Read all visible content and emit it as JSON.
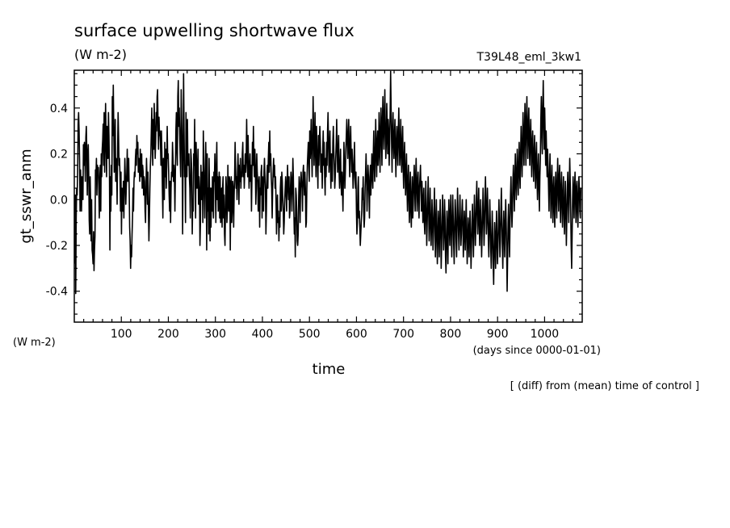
{
  "chart_data": {
    "type": "line",
    "title": "surface upwelling shortwave flux",
    "units": "(W m-2)",
    "run_label": "T39L48_eml_3kw1",
    "ylabel": "gt_sswr_anm",
    "y_units_note": "(W m-2)",
    "xlabel": "time",
    "x_units": "(days since 0000-01-01)",
    "footnote": "[ (diff) from (mean) time of control ]",
    "xlim": [
      0,
      1080
    ],
    "ylim": [
      -0.535,
      0.565
    ],
    "xticks_major": [
      100,
      200,
      300,
      400,
      500,
      600,
      700,
      800,
      900,
      1000
    ],
    "xticks_minor_step": 20,
    "yticks_major": [
      -0.4,
      -0.2,
      0.0,
      0.2,
      0.4
    ],
    "yticks_minor_step": 0.05,
    "grid": false,
    "legend": "none",
    "series": [
      {
        "color": "#000000",
        "x_start": 1,
        "x_step": 1,
        "values": [
          -0.28,
          0.02,
          -0.41,
          -0.08,
          0.05,
          0.02,
          0.12,
          0.33,
          0.38,
          0.3,
          0.17,
          -0.05,
          0.13,
          0.06,
          -0.05,
          0.1,
          0.03,
          0.0,
          0.24,
          0.15,
          0.25,
          0.18,
          0.08,
          0.27,
          0.32,
          0.21,
          0.02,
          0.18,
          0.24,
          0.12,
          -0.09,
          -0.15,
          0.1,
          -0.02,
          -0.18,
          0.0,
          -0.22,
          -0.24,
          -0.28,
          -0.14,
          -0.31,
          -0.22,
          -0.16,
          0.13,
          0.1,
          0.18,
          0.02,
          0.15,
          0.12,
          0.14,
          0.04,
          -0.08,
          0.09,
          0.15,
          -0.05,
          0.2,
          0.1,
          0.22,
          0.26,
          0.33,
          0.15,
          0.38,
          0.12,
          0.25,
          0.42,
          0.28,
          0.1,
          0.32,
          0.3,
          0.18,
          0.38,
          0.28,
          0.14,
          -0.22,
          0.1,
          -0.05,
          0.15,
          0.02,
          0.45,
          0.28,
          0.5,
          0.32,
          0.12,
          0.2,
          0.35,
          0.08,
          0.18,
          0.15,
          -0.02,
          0.22,
          0.38,
          0.28,
          0.15,
          0.18,
          0.1,
          -0.05,
          0.12,
          -0.15,
          0.05,
          0.02,
          -0.05,
          0.08,
          -0.08,
          0.05,
          0.18,
          0.1,
          -0.02,
          0.05,
          0.12,
          0.22,
          0.08,
          0.15,
          0.18,
          0.05,
          -0.12,
          -0.18,
          -0.3,
          -0.2,
          -0.25,
          -0.15,
          -0.08,
          0.05,
          -0.05,
          0.08,
          0.12,
          0.1,
          0.18,
          0.22,
          0.15,
          0.28,
          0.2,
          0.25,
          0.12,
          0.18,
          0.15,
          0.08,
          0.22,
          0.12,
          0.1,
          0.2,
          0.05,
          0.15,
          0.12,
          0.02,
          0.1,
          0.08,
          -0.05,
          -0.1,
          0.05,
          0.18,
          0.1,
          -0.02,
          0.12,
          -0.05,
          -0.18,
          -0.08,
          0.05,
          0.15,
          0.2,
          0.3,
          0.4,
          0.25,
          0.15,
          0.35,
          0.22,
          0.42,
          0.3,
          0.18,
          0.25,
          0.38,
          0.3,
          0.45,
          0.48,
          0.32,
          0.22,
          0.36,
          0.28,
          0.3,
          0.25,
          0.15,
          0.3,
          0.2,
          0.05,
          -0.08,
          0.18,
          0.12,
          0.0,
          0.25,
          0.1,
          0.22,
          0.05,
          0.15,
          0.32,
          0.18,
          0.2,
          0.12,
          0.02,
          -0.05,
          0.08,
          -0.1,
          0.05,
          0.12,
          0.1,
          0.25,
          0.18,
          0.08,
          0.15,
          0.1,
          -0.05,
          0.12,
          0.3,
          0.38,
          0.22,
          0.15,
          0.45,
          0.52,
          0.32,
          0.4,
          0.28,
          0.18,
          0.1,
          0.48,
          0.35,
          0.22,
          -0.15,
          0.2,
          0.55,
          0.3,
          0.1,
          0.15,
          -0.1,
          0.38,
          0.2,
          0.1,
          0.35,
          0.15,
          0.15,
          0.2,
          0.1,
          0.05,
          -0.08,
          0.22,
          0.18,
          0.12,
          -0.15,
          0.0,
          -0.05,
          0.2,
          0.15,
          0.35,
          0.05,
          -0.08,
          0.25,
          0.15,
          0.05,
          0.12,
          0.22,
          -0.02,
          0.1,
          0.05,
          -0.2,
          -0.1,
          0.15,
          0.05,
          0.0,
          0.12,
          -0.1,
          0.3,
          0.15,
          0.02,
          -0.08,
          0.12,
          0.25,
          0.1,
          -0.22,
          0.2,
          -0.05,
          0.05,
          -0.15,
          0.18,
          0.02,
          -0.18,
          0.05,
          -0.12,
          0.05,
          -0.05,
          0.1,
          -0.02,
          -0.08,
          0.12,
          0.08,
          0.2,
          0.05,
          -0.1,
          0.15,
          0.25,
          0.0,
          0.1,
          -0.05,
          0.05,
          0.12,
          -0.08,
          0.1,
          -0.1,
          -0.05,
          0.05,
          -0.12,
          0.05,
          0.1,
          -0.08,
          0.02,
          -0.15,
          -0.2,
          -0.05,
          0.1,
          0.05,
          -0.1,
          -0.05,
          0.15,
          0.0,
          -0.05,
          0.1,
          0.08,
          -0.22,
          0.05,
          0.1,
          -0.1,
          -0.05,
          0.08,
          0.05,
          -0.12,
          0.02,
          0.1,
          0.25,
          0.15,
          0.05,
          0.1,
          0.0,
          0.12,
          0.2,
          0.1,
          -0.02,
          0.15,
          0.08,
          0.18,
          0.05,
          0.12,
          0.1,
          0.2,
          0.25,
          0.1,
          0.15,
          0.05,
          0.12,
          0.2,
          0.12,
          0.18,
          0.35,
          0.2,
          0.1,
          0.28,
          0.15,
          0.05,
          0.12,
          0.2,
          0.08,
          0.15,
          -0.05,
          0.1,
          0.25,
          0.15,
          0.32,
          0.18,
          0.1,
          0.22,
          0.15,
          -0.02,
          0.05,
          0.2,
          0.12,
          0.08,
          -0.05,
          0.05,
          0.1,
          -0.12,
          0.05,
          0.02,
          0.12,
          0.15,
          -0.08,
          0.1,
          0.05,
          -0.05,
          0.12,
          0.18,
          0.1,
          0.05,
          -0.15,
          -0.05,
          0.1,
          0.15,
          0.05,
          0.18,
          0.25,
          0.12,
          0.3,
          0.15,
          0.2,
          0.1,
          0.05,
          -0.08,
          0.05,
          0.12,
          0.18,
          0.1,
          0.15,
          0.05,
          0.1,
          0.0,
          -0.15,
          -0.05,
          0.02,
          -0.1,
          -0.05,
          -0.18,
          -0.08,
          -0.12,
          0.05,
          0.1,
          -0.05,
          0.12,
          0.08,
          0.0,
          -0.05,
          -0.15,
          -0.1,
          0.0,
          0.05,
          0.1,
          0.02,
          -0.05,
          0.08,
          0.15,
          0.05,
          0.0,
          0.1,
          -0.08,
          -0.05,
          0.05,
          0.12,
          0.08,
          -0.05,
          0.05,
          0.18,
          0.1,
          -0.05,
          -0.15,
          -0.08,
          -0.25,
          0.05,
          0.02,
          -0.05,
          -0.18,
          -0.2,
          -0.15,
          0.0,
          0.1,
          0.05,
          -0.1,
          0.05,
          0.12,
          0.08,
          0.05,
          -0.05,
          0.12,
          0.15,
          0.08,
          0.02,
          0.12,
          0.05,
          -0.12,
          -0.1,
          0.05,
          0.15,
          0.2,
          0.25,
          0.15,
          0.08,
          0.3,
          0.18,
          0.25,
          0.35,
          0.2,
          0.1,
          0.25,
          0.45,
          0.3,
          0.15,
          0.25,
          0.38,
          0.2,
          0.1,
          0.32,
          0.22,
          0.15,
          0.05,
          0.28,
          0.15,
          0.25,
          0.32,
          0.25,
          0.12,
          0.2,
          0.18,
          0.05,
          0.22,
          0.3,
          0.15,
          0.25,
          0.1,
          0.02,
          0.18,
          0.1,
          0.25,
          0.15,
          0.3,
          0.38,
          0.25,
          0.12,
          0.22,
          0.3,
          0.15,
          0.05,
          0.2,
          0.12,
          0.08,
          0.25,
          0.32,
          0.22,
          0.15,
          0.05,
          0.1,
          0.18,
          0.25,
          0.35,
          0.22,
          0.12,
          0.2,
          0.28,
          0.12,
          0.05,
          0.15,
          0.22,
          0.08,
          0.02,
          0.12,
          0.05,
          -0.05,
          0.1,
          0.25,
          0.15,
          0.05,
          0.12,
          0.22,
          0.28,
          0.35,
          0.25,
          0.18,
          0.28,
          0.35,
          0.2,
          0.1,
          0.25,
          0.32,
          0.2,
          0.12,
          0.22,
          0.15,
          0.05,
          0.1,
          0.18,
          0.25,
          0.1,
          0.05,
          0.12,
          -0.05,
          -0.15,
          -0.1,
          0.05,
          0.1,
          -0.08,
          -0.05,
          -0.12,
          -0.2,
          -0.15,
          -0.1,
          -0.05,
          0.05,
          0.0,
          0.1,
          -0.05,
          -0.12,
          -0.08,
          0.05,
          0.12,
          0.2,
          0.1,
          -0.05,
          0.05,
          0.15,
          0.1,
          0.02,
          -0.08,
          0.1,
          0.15,
          0.02,
          0.12,
          0.2,
          0.1,
          0.05,
          0.2,
          0.3,
          0.15,
          0.08,
          0.2,
          0.35,
          0.22,
          0.1,
          0.25,
          0.3,
          0.15,
          0.2,
          0.38,
          0.25,
          0.12,
          0.3,
          0.4,
          0.28,
          0.15,
          0.35,
          0.45,
          0.3,
          0.22,
          0.38,
          0.48,
          0.3,
          0.18,
          0.25,
          0.42,
          0.32,
          0.2,
          0.35,
          0.3,
          0.15,
          0.25,
          0.38,
          0.56,
          0.4,
          0.25,
          0.12,
          0.3,
          0.38,
          0.25,
          0.18,
          0.28,
          0.35,
          0.2,
          0.1,
          0.25,
          0.32,
          0.22,
          0.15,
          0.3,
          0.4,
          0.25,
          0.15,
          0.22,
          0.35,
          0.2,
          0.12,
          0.25,
          0.32,
          0.15,
          0.05,
          0.18,
          0.25,
          0.12,
          0.02,
          0.12,
          0.2,
          0.05,
          -0.05,
          0.08,
          0.15,
          0.0,
          -0.1,
          0.05,
          0.12,
          -0.05,
          -0.12,
          0.02,
          0.1,
          -0.08,
          -0.02,
          0.08,
          0.15,
          0.05,
          -0.05,
          0.1,
          0.18,
          0.05,
          -0.05,
          0.08,
          0.12,
          0.0,
          -0.08,
          0.05,
          0.1,
          0.15,
          0.05,
          -0.05,
          0.08,
          0.02,
          -0.1,
          -0.05,
          0.05,
          -0.1,
          -0.15,
          -0.05,
          0.08,
          -0.05,
          -0.2,
          -0.1,
          0.0,
          0.1,
          -0.05,
          -0.18,
          -0.08,
          0.05,
          -0.1,
          -0.2,
          -0.12,
          0.0,
          -0.08,
          -0.22,
          -0.15,
          -0.05,
          0.05,
          -0.1,
          -0.25,
          -0.12,
          0.0,
          -0.15,
          -0.28,
          -0.18,
          -0.05,
          -0.12,
          -0.25,
          -0.1,
          0.0,
          -0.12,
          -0.3,
          -0.2,
          -0.08,
          0.02,
          -0.1,
          -0.22,
          -0.15,
          0.0,
          -0.08,
          -0.25,
          -0.32,
          -0.18,
          -0.05,
          -0.15,
          -0.28,
          -0.1,
          0.0,
          -0.12,
          -0.2,
          -0.05,
          0.02,
          -0.15,
          -0.25,
          -0.1,
          0.02,
          -0.08,
          -0.2,
          -0.28,
          -0.12,
          0.0,
          -0.05,
          -0.18,
          -0.25,
          -0.1,
          0.05,
          -0.05,
          -0.15,
          -0.22,
          -0.08,
          0.02,
          -0.1,
          -0.2,
          -0.15,
          -0.05,
          0.0,
          -0.1,
          -0.25,
          -0.18,
          -0.05,
          -0.12,
          -0.22,
          -0.1,
          0.0,
          -0.15,
          -0.28,
          -0.2,
          -0.08,
          -0.15,
          -0.25,
          -0.12,
          -0.05,
          -0.18,
          -0.3,
          -0.2,
          -0.1,
          -0.02,
          -0.15,
          -0.25,
          -0.12,
          0.02,
          -0.08,
          -0.2,
          -0.12,
          0.0,
          0.08,
          -0.05,
          -0.15,
          -0.05,
          0.05,
          -0.1,
          -0.2,
          -0.08,
          0.0,
          -0.12,
          -0.25,
          -0.15,
          -0.05,
          0.05,
          -0.08,
          -0.2,
          -0.12,
          0.02,
          0.1,
          -0.02,
          -0.15,
          -0.08,
          0.05,
          -0.05,
          -0.18,
          -0.25,
          -0.12,
          0.0,
          -0.1,
          -0.22,
          -0.3,
          -0.18,
          -0.05,
          -0.15,
          -0.28,
          -0.37,
          -0.22,
          -0.1,
          -0.2,
          -0.3,
          -0.15,
          -0.05,
          -0.18,
          -0.28,
          -0.2,
          -0.1,
          0.0,
          -0.12,
          -0.25,
          -0.18,
          -0.05,
          0.05,
          -0.08,
          -0.2,
          -0.3,
          -0.15,
          -0.05,
          -0.15,
          -0.25,
          -0.1,
          0.0,
          -0.1,
          -0.22,
          -0.4,
          -0.25,
          -0.1,
          -0.02,
          -0.15,
          -0.25,
          -0.1,
          0.02,
          0.1,
          -0.02,
          -0.12,
          -0.05,
          0.08,
          0.15,
          0.05,
          -0.05,
          0.1,
          0.2,
          0.08,
          0.0,
          0.12,
          0.22,
          0.1,
          0.02,
          0.15,
          0.25,
          0.12,
          0.05,
          0.2,
          0.32,
          0.2,
          0.1,
          0.25,
          0.38,
          0.25,
          0.15,
          0.3,
          0.42,
          0.28,
          0.15,
          0.35,
          0.45,
          0.3,
          0.18,
          0.32,
          0.4,
          0.25,
          0.15,
          0.28,
          0.35,
          0.22,
          0.1,
          0.25,
          0.3,
          0.18,
          0.08,
          0.2,
          0.28,
          0.15,
          0.05,
          0.18,
          0.25,
          0.1,
          0.0,
          0.12,
          0.2,
          0.05,
          -0.05,
          0.1,
          0.18,
          0.35,
          0.45,
          0.3,
          0.2,
          0.4,
          0.52,
          0.35,
          0.22,
          0.4,
          0.28,
          0.15,
          0.3,
          0.2,
          0.1,
          0.22,
          0.15,
          0.05,
          -0.05,
          0.1,
          0.2,
          0.08,
          -0.08,
          0.05,
          0.15,
          0.0,
          -0.1,
          0.05,
          0.1,
          -0.05,
          -0.12,
          0.05,
          0.12,
          0.0,
          -0.08,
          0.08,
          0.18,
          0.05,
          -0.05,
          0.1,
          0.15,
          0.0,
          -0.1,
          0.05,
          0.12,
          -0.02,
          -0.12,
          0.02,
          0.1,
          -0.05,
          -0.15,
          -0.02,
          0.08,
          -0.05,
          -0.2,
          -0.08,
          0.05,
          0.12,
          0.0,
          -0.1,
          0.05,
          0.18,
          0.08,
          -0.05,
          -0.2,
          -0.3,
          -0.15,
          0.0,
          0.1,
          0.02,
          -0.08,
          0.05,
          0.12,
          0.0,
          -0.1,
          0.05,
          0.08,
          -0.05,
          -0.12,
          0.02,
          0.1,
          0.05,
          -0.05,
          -0.08,
          0.05
        ]
      }
    ]
  }
}
